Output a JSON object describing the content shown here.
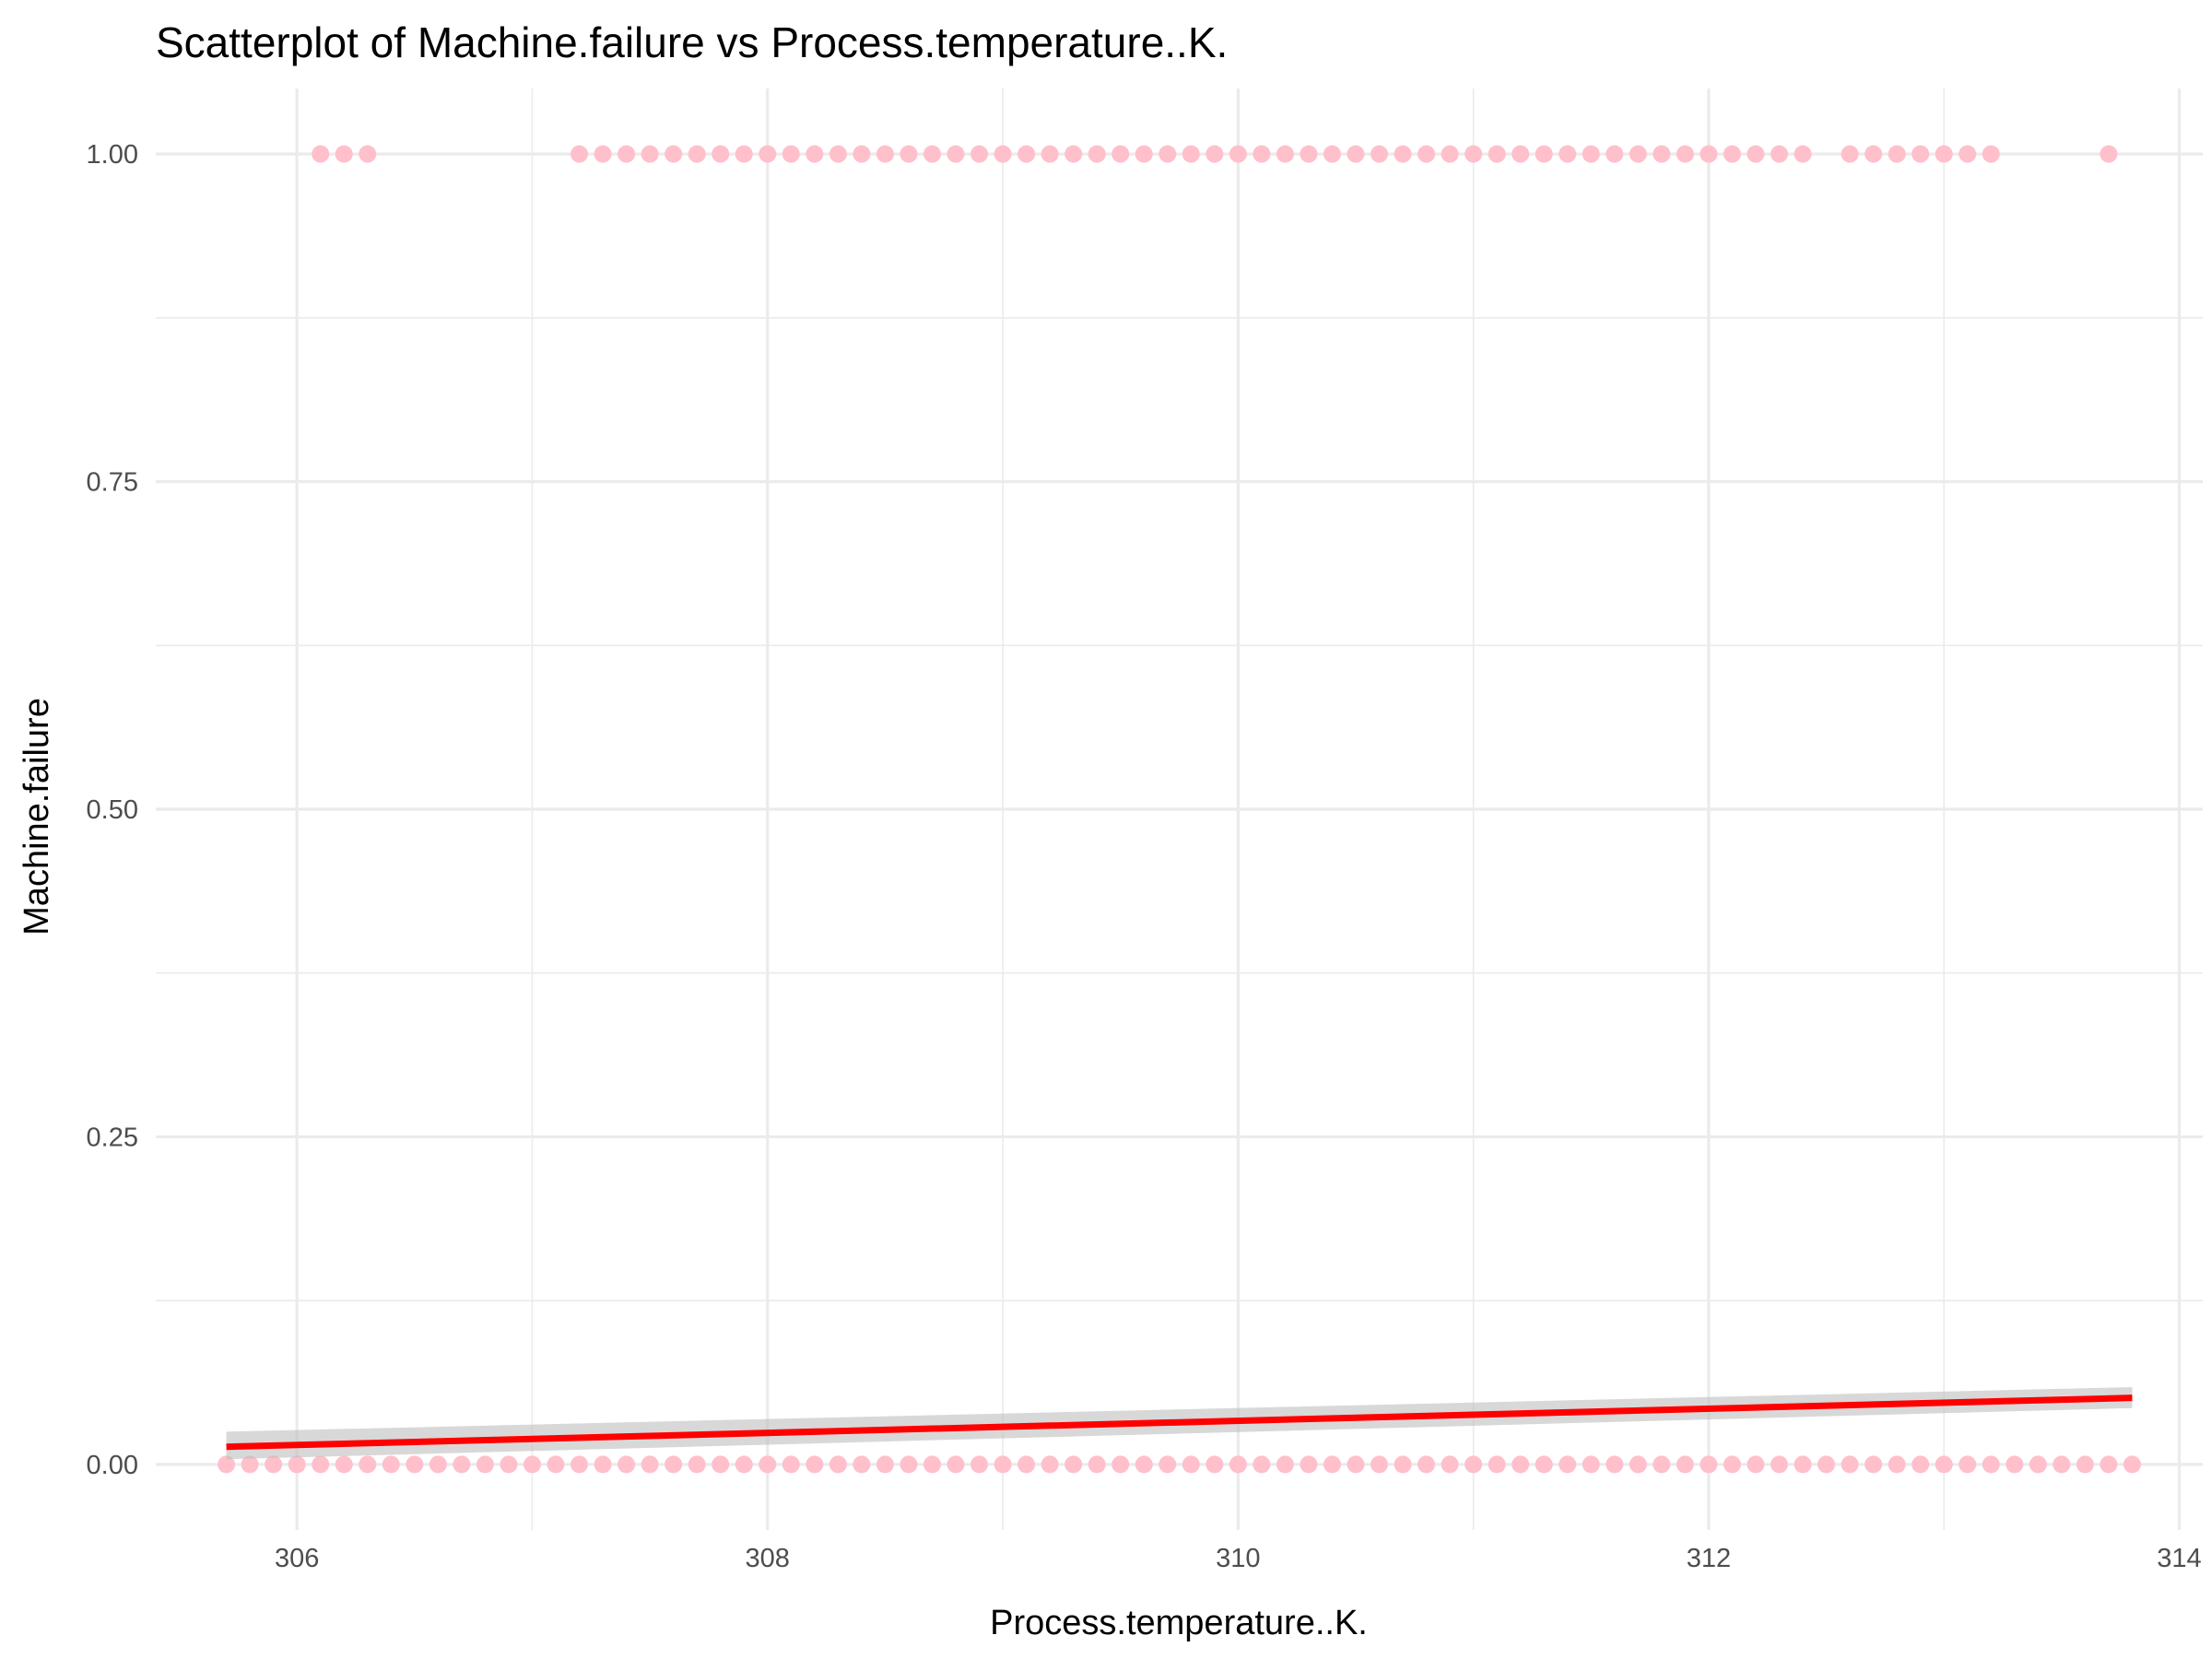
{
  "chart_data": {
    "type": "scatter",
    "title": "Scatterplot of Machine.failure vs Process.temperature..K.",
    "xlabel": "Process.temperature..K.",
    "ylabel": "Machine.failure",
    "xlim": [
      305.4,
      314.1
    ],
    "ylim": [
      -0.05,
      1.05
    ],
    "x_ticks": [
      306,
      308,
      310,
      312,
      314
    ],
    "x_tick_labels": [
      "306",
      "308",
      "310",
      "312",
      "314"
    ],
    "y_ticks": [
      0,
      0.25,
      0.5,
      0.75,
      1
    ],
    "y_tick_labels": [
      "0.00",
      "0.25",
      "0.50",
      "0.75",
      "1.00"
    ],
    "grid": true,
    "point_color": "#FFC0CB",
    "trend_color": "#FF0000",
    "band_color": "#BEBEBE",
    "series": [
      {
        "y": 0,
        "x_range": [
          305.7,
          313.8
        ],
        "x_step": 0.1,
        "x_omit": []
      },
      {
        "y": 1,
        "x_range": [
          306.1,
          313.7
        ],
        "x_step": 0.1,
        "x_omit": [
          306.4,
          306.5,
          306.6,
          306.7,
          306.8,
          306.9,
          307.0,
          307.1,
          312.5,
          313.3,
          313.4,
          313.5,
          313.6
        ]
      }
    ],
    "trend_line": {
      "x": [
        305.7,
        313.8
      ],
      "y": [
        0.0135,
        0.0508
      ],
      "ci_lower": [
        0.004,
        0.043
      ],
      "ci_upper": [
        0.025,
        0.059
      ]
    }
  }
}
